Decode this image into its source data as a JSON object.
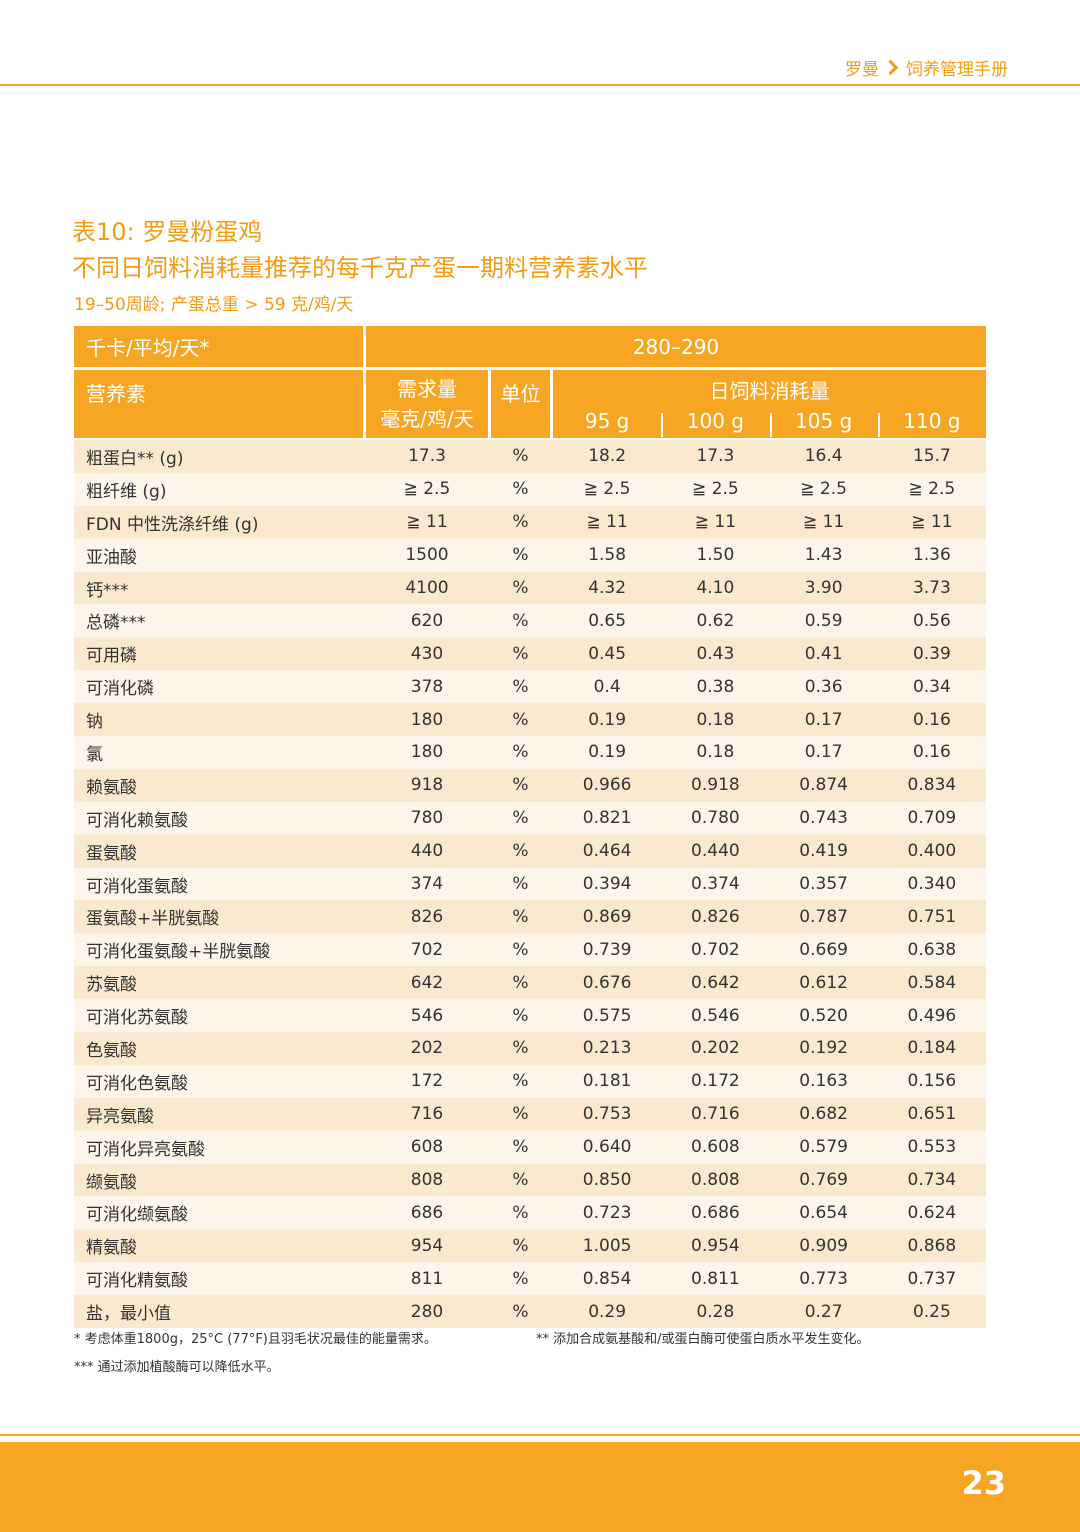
{
  "header": {
    "brand": "罗曼",
    "section": "饲养管理手册"
  },
  "title_line1": "表10: 罗曼粉蛋鸡",
  "title_line2": "不同日饲料消耗量推荐的每千克产蛋一期料营养素水平",
  "subtitle": "19–50周龄; 产蛋总重 > 59 克/鸡/天",
  "table": {
    "energy_label": "千卡/平均/天*",
    "energy_value": "280–290",
    "col_nutrient": "营养素",
    "col_requirement_line1": "需求量",
    "col_requirement_line2": "毫克/鸡/天",
    "col_unit": "单位",
    "col_intake": "日饲料消耗量",
    "intake_cols": [
      "95 g",
      "100 g",
      "105 g",
      "110 g"
    ],
    "rows": [
      [
        "粗蛋白** (g)",
        "17.3",
        "%",
        "18.2",
        "17.3",
        "16.4",
        "15.7"
      ],
      [
        "粗纤维 (g)",
        "≧ 2.5",
        "%",
        "≧ 2.5",
        "≧ 2.5",
        "≧ 2.5",
        "≧ 2.5"
      ],
      [
        "FDN 中性洗涤纤维 (g)",
        "≧ 11",
        "%",
        "≧ 11",
        "≧ 11",
        "≧ 11",
        "≧ 11"
      ],
      [
        "亚油酸",
        "1500",
        "%",
        "1.58",
        "1.50",
        "1.43",
        "1.36"
      ],
      [
        "钙***",
        "4100",
        "%",
        "4.32",
        "4.10",
        "3.90",
        "3.73"
      ],
      [
        "总磷***",
        "620",
        "%",
        "0.65",
        "0.62",
        "0.59",
        "0.56"
      ],
      [
        "可用磷",
        "430",
        "%",
        "0.45",
        "0.43",
        "0.41",
        "0.39"
      ],
      [
        "可消化磷",
        "378",
        "%",
        "0.4",
        "0.38",
        "0.36",
        "0.34"
      ],
      [
        "钠",
        "180",
        "%",
        "0.19",
        "0.18",
        "0.17",
        "0.16"
      ],
      [
        "氯",
        "180",
        "%",
        "0.19",
        "0.18",
        "0.17",
        "0.16"
      ],
      [
        "赖氨酸",
        "918",
        "%",
        "0.966",
        "0.918",
        "0.874",
        "0.834"
      ],
      [
        "可消化赖氨酸",
        "780",
        "%",
        "0.821",
        "0.780",
        "0.743",
        "0.709"
      ],
      [
        "蛋氨酸",
        "440",
        "%",
        "0.464",
        "0.440",
        "0.419",
        "0.400"
      ],
      [
        "可消化蛋氨酸",
        "374",
        "%",
        "0.394",
        "0.374",
        "0.357",
        "0.340"
      ],
      [
        "蛋氨酸+半胱氨酸",
        "826",
        "%",
        "0.869",
        "0.826",
        "0.787",
        "0.751"
      ],
      [
        "可消化蛋氨酸+半胱氨酸",
        "702",
        "%",
        "0.739",
        "0.702",
        "0.669",
        "0.638"
      ],
      [
        "苏氨酸",
        "642",
        "%",
        "0.676",
        "0.642",
        "0.612",
        "0.584"
      ],
      [
        "可消化苏氨酸",
        "546",
        "%",
        "0.575",
        "0.546",
        "0.520",
        "0.496"
      ],
      [
        "色氨酸",
        "202",
        "%",
        "0.213",
        "0.202",
        "0.192",
        "0.184"
      ],
      [
        "可消化色氨酸",
        "172",
        "%",
        "0.181",
        "0.172",
        "0.163",
        "0.156"
      ],
      [
        "异亮氨酸",
        "716",
        "%",
        "0.753",
        "0.716",
        "0.682",
        "0.651"
      ],
      [
        "可消化异亮氨酸",
        "608",
        "%",
        "0.640",
        "0.608",
        "0.579",
        "0.553"
      ],
      [
        "缬氨酸",
        "808",
        "%",
        "0.850",
        "0.808",
        "0.769",
        "0.734"
      ],
      [
        "可消化缬氨酸",
        "686",
        "%",
        "0.723",
        "0.686",
        "0.654",
        "0.624"
      ],
      [
        "精氨酸",
        "954",
        "%",
        "1.005",
        "0.954",
        "0.909",
        "0.868"
      ],
      [
        "可消化精氨酸",
        "811",
        "%",
        "0.854",
        "0.811",
        "0.773",
        "0.737"
      ],
      [
        "盐，最小值",
        "280",
        "%",
        "0.29",
        "0.28",
        "0.27",
        "0.25"
      ]
    ]
  },
  "notes": {
    "n1": "* 考虑体重1800g，25°C (77°F)且羽毛状况最佳的能量需求。",
    "n2": "** 添加合成氨基酸和/或蛋白酶可使蛋白质水平发生变化。",
    "n3": "*** 通过添加植酸酶可以降低水平。"
  },
  "page_number": "23",
  "colors": {
    "accent": "#f6a623",
    "row_dark": "#fbe9cf",
    "row_light": "#fdf5e9"
  }
}
